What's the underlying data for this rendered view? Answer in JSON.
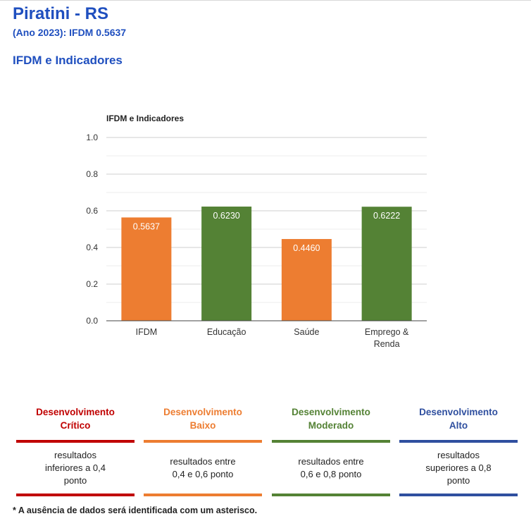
{
  "header": {
    "title": "Piratini - RS",
    "subtitle": "(Ano 2023): IFDM 0.5637",
    "section": "IFDM e Indicadores"
  },
  "colors": {
    "accent": "#1f4fbf",
    "orange": "#ed7d31",
    "green": "#548235"
  },
  "chart_data": {
    "type": "bar",
    "title": "IFDM e Indicadores",
    "categories": [
      "IFDM",
      "Educação",
      "Saúde",
      "Emprego & Renda"
    ],
    "category_lines": [
      [
        "IFDM"
      ],
      [
        "Educação"
      ],
      [
        "Saúde"
      ],
      [
        "Emprego &",
        "Renda"
      ]
    ],
    "values": [
      0.5637,
      0.623,
      0.446,
      0.6222
    ],
    "value_labels": [
      "0.5637",
      "0.6230",
      "0.4460",
      "0.6222"
    ],
    "bar_colors": [
      "#ed7d31",
      "#548235",
      "#ed7d31",
      "#548235"
    ],
    "ylim": [
      0,
      1.0
    ],
    "yticks": [
      "0.0",
      "0.2",
      "0.4",
      "0.6",
      "0.8",
      "1.0"
    ],
    "grid": true
  },
  "legend": [
    {
      "title_1": "Desenvolvimento",
      "title_2": "Crítico",
      "color": "#c00000",
      "desc": "resultados inferiores a 0,4 ponto"
    },
    {
      "title_1": "Desenvolvimento",
      "title_2": "Baixo",
      "color": "#ed7d31",
      "desc": "resultados entre 0,4 e 0,6 ponto"
    },
    {
      "title_1": "Desenvolvimento",
      "title_2": "Moderado",
      "color": "#548235",
      "desc": "resultados entre 0,6 e 0,8 ponto"
    },
    {
      "title_1": "Desenvolvimento",
      "title_2": "Alto",
      "color": "#2f4f9f",
      "desc": "resultados superiores a 0,8 ponto"
    }
  ],
  "footnote": "* A ausência de dados será identificada com um asterisco."
}
